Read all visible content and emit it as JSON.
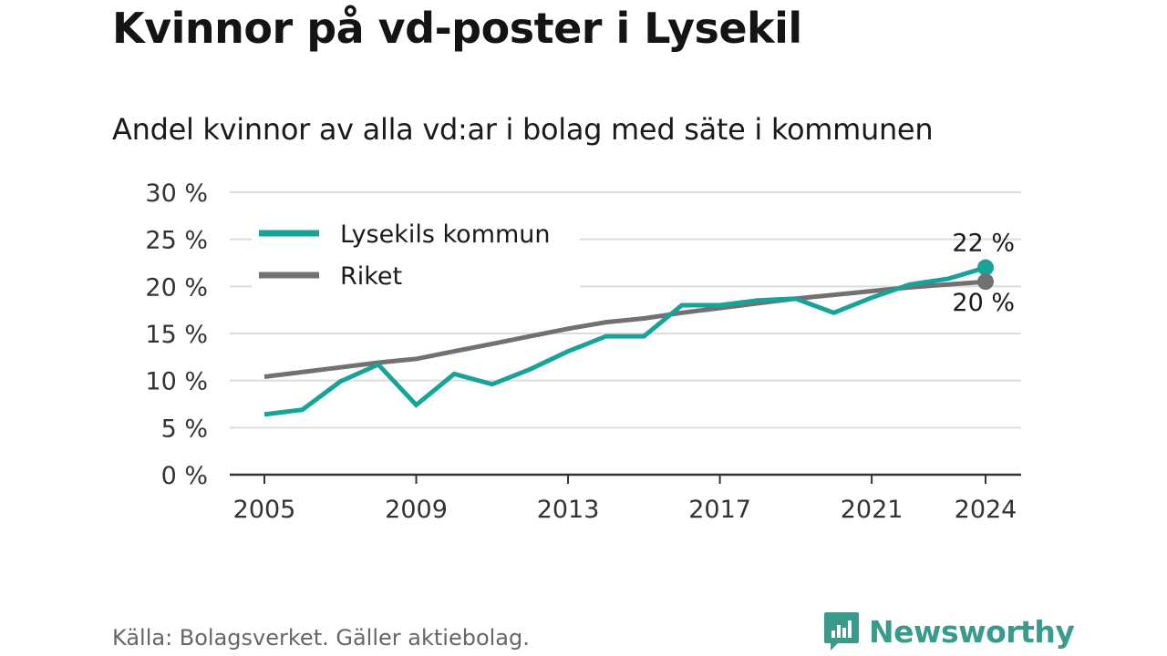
{
  "title": "Kvinnor på vd-poster i Lysekil",
  "subtitle": "Andel kvinnor av alla vd:ar i bolag med säte i kommunen",
  "source": "Källa: Bolagsverket. Gäller aktiebolag.",
  "brand": {
    "name": "Newsworthy",
    "icon": "newsworthy-logo-icon",
    "color": "#3a9b8d"
  },
  "chart_data": {
    "type": "line",
    "x": [
      2005,
      2006,
      2007,
      2008,
      2009,
      2010,
      2011,
      2012,
      2013,
      2014,
      2015,
      2016,
      2017,
      2018,
      2019,
      2020,
      2021,
      2022,
      2023,
      2024
    ],
    "series": [
      {
        "name": "Lysekils kommun",
        "color": "#17a398",
        "values": [
          6.4,
          6.9,
          9.9,
          11.7,
          7.4,
          10.7,
          9.6,
          11.2,
          13.1,
          14.7,
          14.7,
          18.0,
          18.0,
          18.5,
          18.7,
          17.2,
          18.8,
          20.2,
          20.8,
          22.0
        ],
        "end_label": "22 %"
      },
      {
        "name": "Riket",
        "color": "#727073",
        "values": [
          10.4,
          10.9,
          11.4,
          11.9,
          12.3,
          13.1,
          13.9,
          14.7,
          15.5,
          16.2,
          16.6,
          17.2,
          17.7,
          18.2,
          18.7,
          19.1,
          19.5,
          19.9,
          20.2,
          20.5
        ],
        "end_label": "20 %"
      }
    ],
    "y_ticks": [
      "0 %",
      "5 %",
      "10 %",
      "15 %",
      "20 %",
      "25 %",
      "30 %"
    ],
    "y_tick_values": [
      0,
      5,
      10,
      15,
      20,
      25,
      30
    ],
    "x_ticks": [
      "2005",
      "2009",
      "2013",
      "2017",
      "2021",
      "2024"
    ],
    "x_tick_values": [
      2005,
      2009,
      2013,
      2017,
      2021,
      2024
    ],
    "ylim": [
      0,
      30
    ],
    "xlabel": "",
    "ylabel": "",
    "grid": true,
    "legend_position": "top-left"
  }
}
